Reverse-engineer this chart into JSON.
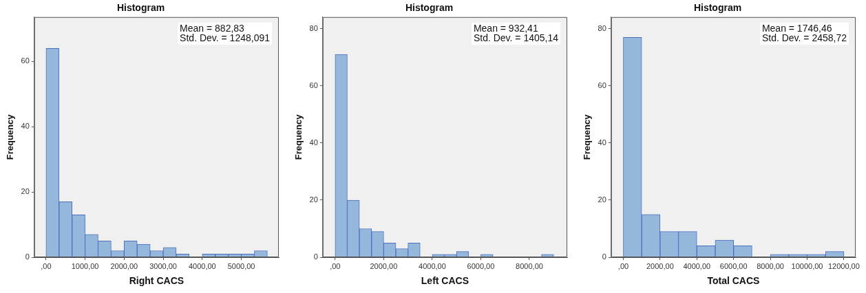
{
  "chart_data": [
    {
      "type": "histogram",
      "title": "Histogram",
      "xlabel": "Right CACS",
      "ylabel": "Frequency",
      "color": "#95b7dc",
      "grid": false,
      "legend": false,
      "bins": [
        0,
        333.33,
        666.67,
        1000,
        1333.33,
        1666.67,
        2000,
        2333.33,
        2666.67,
        3000,
        3333.33,
        3666.67,
        4000,
        4333.33,
        4666.67,
        5000,
        5333.33,
        5666.67
      ],
      "values": [
        64,
        17,
        13,
        7,
        5,
        2,
        5,
        4,
        2,
        3,
        1,
        0,
        1,
        1,
        1,
        1,
        2
      ],
      "xlim": [
        -300,
        5960
      ],
      "xticks": [
        {
          "value": 0,
          "label": ",00"
        },
        {
          "value": 1000,
          "label": "1000,00"
        },
        {
          "value": 2000,
          "label": "2000,00"
        },
        {
          "value": 3000,
          "label": "3000,00"
        },
        {
          "value": 4000,
          "label": "4000,00"
        },
        {
          "value": 5000,
          "label": "5000,00"
        }
      ],
      "ylim": [
        0,
        73.6
      ],
      "yticks": [
        0,
        20,
        40,
        60
      ],
      "annotations": [
        "Mean = 882,83",
        "Std. Dev. = 1248,091"
      ]
    },
    {
      "type": "histogram",
      "title": "Histogram",
      "xlabel": "Left CACS",
      "ylabel": "Frequency",
      "color": "#95b7dc",
      "grid": false,
      "legend": false,
      "bins": [
        0,
        500,
        1000,
        1500,
        2000,
        2500,
        3000,
        3500,
        4000,
        4500,
        5000,
        5500,
        6000,
        6500,
        7000,
        7500,
        8000,
        8500,
        9000
      ],
      "values": [
        71,
        20,
        10,
        9,
        5,
        3,
        5,
        0,
        1,
        1,
        2,
        0,
        1,
        0,
        0,
        0,
        0,
        1
      ],
      "xlim": [
        -510,
        9560
      ],
      "xticks": [
        {
          "value": 0,
          "label": ",00"
        },
        {
          "value": 2000,
          "label": "2000,00"
        },
        {
          "value": 4000,
          "label": "4000,00"
        },
        {
          "value": 6000,
          "label": "6000,00"
        },
        {
          "value": 8000,
          "label": "8000,00"
        }
      ],
      "ylim": [
        0,
        84.1
      ],
      "yticks": [
        0,
        20,
        40,
        60,
        80
      ],
      "annotations": [
        "Mean = 932,41",
        "Std. Dev. = 1405,14"
      ]
    },
    {
      "type": "histogram",
      "title": "Histogram",
      "xlabel": "Total CACS",
      "ylabel": "Frequency",
      "color": "#95b7dc",
      "grid": false,
      "legend": false,
      "bins": [
        0,
        1000,
        2000,
        3000,
        4000,
        5000,
        6000,
        7000,
        8000,
        9000,
        10000,
        11000,
        12000
      ],
      "values": [
        77,
        15,
        9,
        9,
        4,
        6,
        4,
        0,
        1,
        1,
        1,
        2
      ],
      "xlim": [
        -660,
        12640
      ],
      "xticks": [
        {
          "value": 0,
          "label": ",00"
        },
        {
          "value": 2000,
          "label": "2000,00"
        },
        {
          "value": 4000,
          "label": "4000,00"
        },
        {
          "value": 6000,
          "label": "6000,00"
        },
        {
          "value": 8000,
          "label": "8000,00"
        },
        {
          "value": 10000,
          "label": "10000,00"
        },
        {
          "value": 12000,
          "label": "12000,00"
        }
      ],
      "ylim": [
        0,
        84.1
      ],
      "yticks": [
        0,
        20,
        40,
        60,
        80
      ],
      "annotations": [
        "Mean = 1746,46",
        "Std. Dev. = 2458,72"
      ]
    }
  ]
}
